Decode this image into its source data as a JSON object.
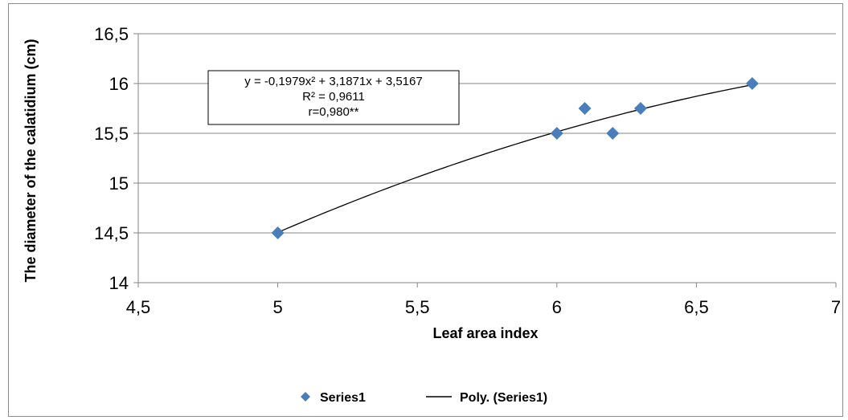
{
  "chart_data": {
    "type": "scatter",
    "title": "",
    "xlabel": "Leaf area index",
    "ylabel": "The diameter of the calatidium (cm)",
    "xlim": [
      4.5,
      7
    ],
    "ylim": [
      14,
      16.5
    ],
    "x_ticks": [
      "4,5",
      "5",
      "5,5",
      "6",
      "6,5",
      "7"
    ],
    "y_ticks": [
      "14",
      "14,5",
      "15",
      "15,5",
      "16",
      "16,5"
    ],
    "grid": "horizontal",
    "legend_position": "bottom",
    "series": [
      {
        "name": "Series1",
        "color": "#4a7ebb",
        "marker": "diamond",
        "points": [
          {
            "x": 5.0,
            "y": 14.5
          },
          {
            "x": 6.0,
            "y": 15.5
          },
          {
            "x": 6.1,
            "y": 15.75
          },
          {
            "x": 6.2,
            "y": 15.5
          },
          {
            "x": 6.3,
            "y": 15.75
          },
          {
            "x": 6.7,
            "y": 16.0
          }
        ]
      }
    ],
    "trendline": {
      "name": "Poly. (Series1)",
      "type": "polynomial",
      "coefficients": {
        "a": -0.1979,
        "b": 3.1871,
        "c": 3.5167
      },
      "x_range": [
        5.0,
        6.7
      ],
      "color": "#000000"
    },
    "annotation": {
      "lines": [
        "y = -0,1979x² + 3,1871x + 3,5167",
        "R² = 0,9611",
        "r=0,980**"
      ]
    }
  }
}
